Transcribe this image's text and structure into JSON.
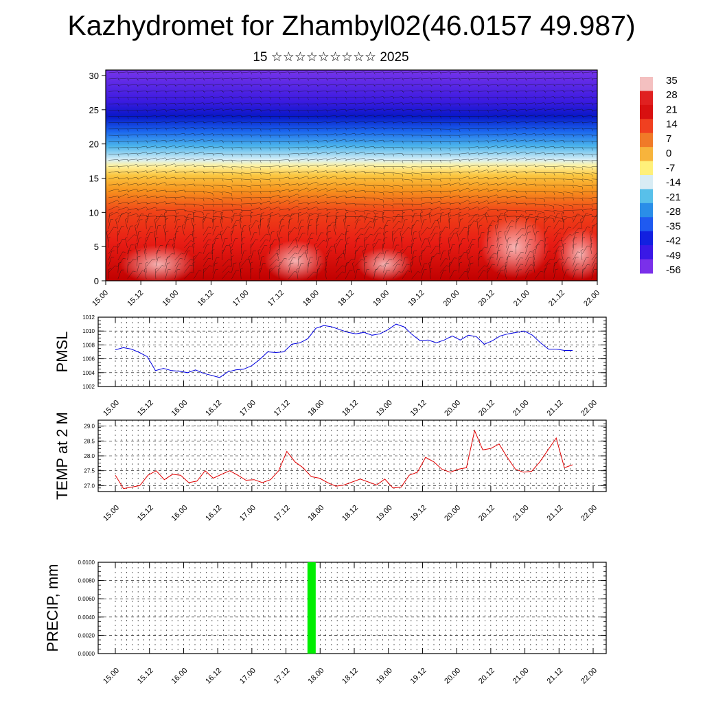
{
  "title": "Kazhydromet for Zhambyl02(46.0157 49.987)",
  "subtitle": "15 ☆☆☆☆☆☆☆☆☆ 2025",
  "chart_data": [
    {
      "type": "heatmap",
      "ylim": [
        0,
        30
      ],
      "ytick_labels": [
        "0",
        "5",
        "10",
        "15",
        "20",
        "25",
        "30"
      ],
      "xtick_labels": [
        "15.00",
        "15.12",
        "16.00",
        "16.12",
        "17.00",
        "17.12",
        "18.00",
        "18.12",
        "19.00",
        "19.12",
        "20.00",
        "20.12",
        "21.00",
        "21.12",
        "22.00"
      ],
      "colorbar": {
        "labels": [
          "35",
          "28",
          "21",
          "14",
          "7",
          "0",
          "-7",
          "-14",
          "-21",
          "-28",
          "-35",
          "-42",
          "-49",
          "-56"
        ],
        "colors": [
          "#f4c0c0",
          "#e02020",
          "#d81010",
          "#f04020",
          "#f07a28",
          "#f7b43c",
          "#fff07a",
          "#d8ecf4",
          "#58c0ea",
          "#2a8ee8",
          "#1f5af0",
          "#1220e0",
          "#3a18e6",
          "#7a30ea"
        ]
      },
      "overlay": "wind barbs"
    },
    {
      "type": "line",
      "ylabel": "PMSL",
      "ylim": [
        1002,
        1012
      ],
      "ytick_labels": [
        "1002",
        "1004",
        "1006",
        "1008",
        "1010",
        "1012"
      ],
      "xtick_labels": [
        "15.00",
        "15.12",
        "16.00",
        "16.12",
        "17.00",
        "17.12",
        "18.00",
        "18.12",
        "19.00",
        "19.12",
        "20.00",
        "20.12",
        "21.00",
        "21.12",
        "22.00"
      ],
      "color": "#0000e0",
      "values": [
        1007.3,
        1007.6,
        1007.4,
        1006.9,
        1006.3,
        1004.3,
        1004.6,
        1004.3,
        1004.2,
        1004.0,
        1004.4,
        1003.9,
        1003.6,
        1003.3,
        1004.1,
        1004.4,
        1004.5,
        1005.0,
        1005.9,
        1007.0,
        1006.9,
        1007.0,
        1008.1,
        1008.3,
        1008.9,
        1010.4,
        1010.8,
        1010.6,
        1010.2,
        1009.8,
        1009.6,
        1009.8,
        1009.4,
        1009.6,
        1010.2,
        1011.0,
        1010.6,
        1009.5,
        1008.6,
        1008.7,
        1008.3,
        1008.7,
        1009.3,
        1008.7,
        1009.4,
        1009.2,
        1008.1,
        1008.6,
        1009.3,
        1009.6,
        1009.8,
        1010.0,
        1009.4,
        1008.3,
        1007.4,
        1007.4,
        1007.2,
        1007.2
      ]
    },
    {
      "type": "line",
      "ylabel": "TEMP at 2 M",
      "ylim": [
        26.8,
        29.2
      ],
      "ytick_labels": [
        "27.0",
        "27.5",
        "28.0",
        "28.5",
        "29.0"
      ],
      "xtick_labels": [
        "15.00",
        "15.12",
        "16.00",
        "16.12",
        "17.00",
        "17.12",
        "18.00",
        "18.12",
        "19.00",
        "19.12",
        "20.00",
        "20.12",
        "21.00",
        "21.12",
        "22.00"
      ],
      "color": "#e00000",
      "values": [
        27.35,
        26.9,
        26.95,
        27.0,
        27.35,
        27.5,
        27.2,
        27.38,
        27.35,
        27.1,
        27.15,
        27.5,
        27.25,
        27.38,
        27.5,
        27.35,
        27.18,
        27.2,
        27.1,
        27.2,
        27.5,
        28.15,
        27.8,
        27.6,
        27.3,
        27.25,
        27.1,
        26.98,
        27.02,
        27.12,
        27.22,
        27.12,
        27.02,
        27.22,
        26.92,
        26.95,
        27.35,
        27.45,
        27.95,
        27.8,
        27.55,
        27.45,
        27.55,
        27.6,
        28.85,
        28.2,
        28.25,
        28.4,
        27.95,
        27.55,
        27.45,
        27.48,
        27.8,
        28.2,
        28.6,
        27.6,
        27.7
      ]
    },
    {
      "type": "bar",
      "ylabel": "PRECIP, mm",
      "ylim": [
        0,
        0.01
      ],
      "ytick_labels": [
        "0.0000",
        "0.0020",
        "0.0040",
        "0.0060",
        "0.0080",
        "0.0100"
      ],
      "xtick_labels": [
        "15.00",
        "15.12",
        "16.00",
        "16.12",
        "17.00",
        "17.12",
        "18.00",
        "18.12",
        "19.00",
        "19.12",
        "20.00",
        "20.12",
        "21.00",
        "21.12",
        "22.00"
      ],
      "bar_color": "#00ee00",
      "bars": [
        {
          "x": "17.21",
          "value": 0.01
        }
      ]
    }
  ]
}
